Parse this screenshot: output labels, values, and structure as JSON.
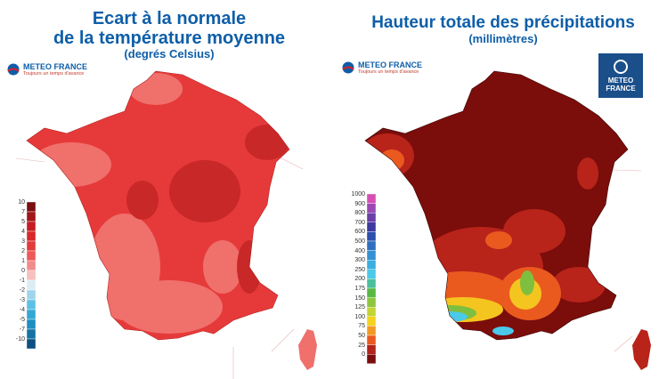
{
  "left_panel": {
    "title_line1": "Ecart à la normale",
    "title_line2": "de la température moyenne",
    "subtitle": "(degrés Celsius)",
    "brand": {
      "name": "METEO FRANCE",
      "tagline": "Toujours un temps d'avance"
    },
    "legend": {
      "labels": [
        "10",
        "7",
        "5",
        "4",
        "3",
        "2",
        "1",
        "0",
        "-1",
        "-2",
        "-3",
        "-4",
        "-5",
        "-7",
        "-10"
      ],
      "colors": [
        "#7a0f12",
        "#a0161a",
        "#c41e22",
        "#d8282a",
        "#e23b3b",
        "#ec5a5a",
        "#f28c8c",
        "#f6c0c0",
        "#dcecf4",
        "#9fd5ec",
        "#5ec1e4",
        "#33a8d4",
        "#1f8ec0",
        "#1672a4",
        "#0c4f80"
      ]
    },
    "map_colors": {
      "base": "#e63a3a",
      "light": "#f0706c",
      "dark": "#c92828"
    }
  },
  "right_panel": {
    "title": "Hauteur totale des précipitations",
    "subtitle": "(millimètres)",
    "brand": {
      "name": "METEO FRANCE",
      "tagline": "Toujours un temps d'avance"
    },
    "badge": {
      "line1": "METEO",
      "line2": "FRANCE"
    },
    "legend": {
      "labels": [
        "1000",
        "900",
        "800",
        "700",
        "600",
        "500",
        "400",
        "300",
        "250",
        "200",
        "175",
        "150",
        "125",
        "100",
        "75",
        "50",
        "25",
        "0"
      ],
      "colors": [
        "#d64fb4",
        "#9b49b5",
        "#6a3fa8",
        "#3d3aa0",
        "#2c4fae",
        "#2e6fc0",
        "#3391d4",
        "#3aaedf",
        "#4ac9e8",
        "#4bbf9c",
        "#57b844",
        "#8cc63e",
        "#c4d433",
        "#f4d31f",
        "#f39a22",
        "#ea5a1f",
        "#b4241a",
        "#7a0e0c"
      ]
    },
    "map_colors": {
      "base": "#7b0d0b",
      "mid": "#b8231a",
      "orange": "#ea5a1f",
      "yellow": "#f4c51f",
      "green": "#7fbf3f",
      "cyan": "#4ac9e8"
    }
  }
}
